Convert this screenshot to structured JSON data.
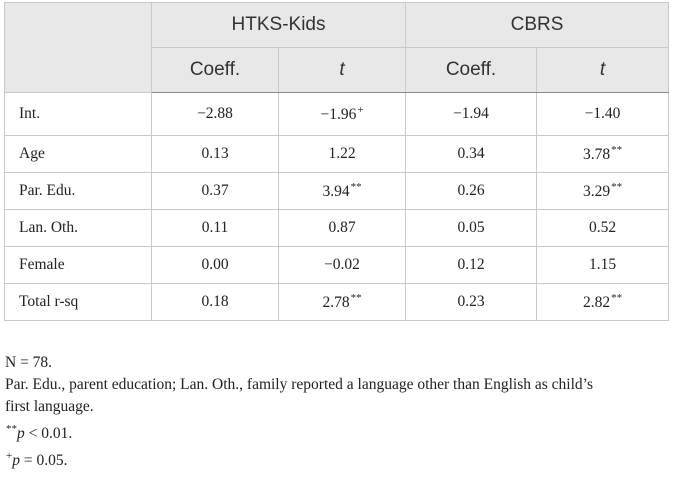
{
  "table": {
    "group_headers": [
      "HTKS-Kids",
      "CBRS"
    ],
    "sub_headers": [
      "Coeff.",
      "t",
      "Coeff.",
      "t"
    ],
    "rows": [
      {
        "label": "Int.",
        "cells": [
          {
            "v": "−2.88",
            "s": ""
          },
          {
            "v": "−1.96",
            "s": "+"
          },
          {
            "v": "−1.94",
            "s": ""
          },
          {
            "v": "−1.40",
            "s": ""
          }
        ]
      },
      {
        "label": "Age",
        "cells": [
          {
            "v": "0.13",
            "s": ""
          },
          {
            "v": "1.22",
            "s": ""
          },
          {
            "v": "0.34",
            "s": ""
          },
          {
            "v": "3.78",
            "s": "**"
          }
        ]
      },
      {
        "label": "Par. Edu.",
        "cells": [
          {
            "v": "0.37",
            "s": ""
          },
          {
            "v": "3.94",
            "s": "**"
          },
          {
            "v": "0.26",
            "s": ""
          },
          {
            "v": "3.29",
            "s": "**"
          }
        ]
      },
      {
        "label": "Lan. Oth.",
        "cells": [
          {
            "v": "0.11",
            "s": ""
          },
          {
            "v": "0.87",
            "s": ""
          },
          {
            "v": "0.05",
            "s": ""
          },
          {
            "v": "0.52",
            "s": ""
          }
        ]
      },
      {
        "label": "Female",
        "cells": [
          {
            "v": "0.00",
            "s": ""
          },
          {
            "v": "−0.02",
            "s": ""
          },
          {
            "v": "0.12",
            "s": ""
          },
          {
            "v": "1.15",
            "s": ""
          }
        ]
      },
      {
        "label": "Total r-sq",
        "cells": [
          {
            "v": "0.18",
            "s": ""
          },
          {
            "v": "2.78",
            "s": "**"
          },
          {
            "v": "0.23",
            "s": ""
          },
          {
            "v": "2.82",
            "s": "**"
          }
        ]
      }
    ]
  },
  "notes": {
    "n": "N = 78.",
    "abbrev_line1": "Par. Edu., parent education; Lan. Oth., family reported a language other than English as child’s",
    "abbrev_line2": "first language.",
    "sig1_mark": "**",
    "sig1_p": "p",
    "sig1_rest": " < 0.01.",
    "sig2_mark": "+",
    "sig2_p": "p",
    "sig2_rest": " = 0.05."
  }
}
